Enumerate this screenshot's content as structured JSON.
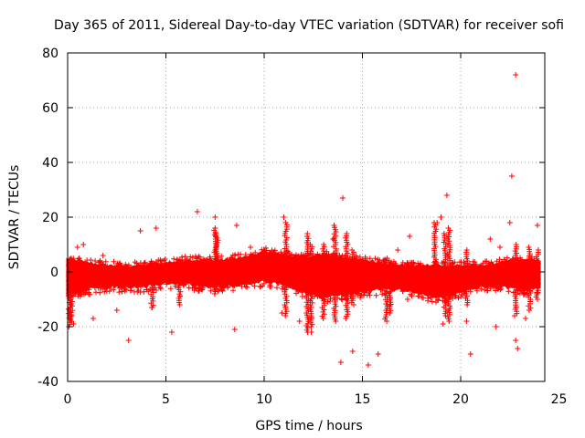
{
  "chart_data": {
    "type": "scatter",
    "title": "Day 365 of 2011, Sidereal Day-to-day VTEC variation (SDTVAR) for receiver sofi",
    "xlabel": "GPS time / hours",
    "ylabel": "SDTVAR / TECUs",
    "xlim": [
      0,
      24
    ],
    "ylim": [
      -40,
      80
    ],
    "xticks": [
      0,
      5,
      10,
      15,
      20,
      25
    ],
    "yticks": [
      -40,
      -20,
      0,
      20,
      40,
      60,
      80
    ],
    "grid": true,
    "marker": "+",
    "color": "#ff0000",
    "series": [
      {
        "name": "SDTVAR",
        "description": "Dense band of points roughly between -8 and +6 TECU across 0-24 h, with spikes",
        "band_envelope": {
          "x": [
            0,
            1,
            2,
            3,
            4,
            5,
            6,
            7,
            8,
            9,
            10,
            11,
            12,
            13,
            14,
            15,
            16,
            17,
            18,
            19,
            20,
            21,
            22,
            23,
            24
          ],
          "lower": [
            -8,
            -6,
            -5,
            -5,
            -5,
            -4,
            -4,
            -5,
            -5,
            -4,
            -3,
            -4,
            -7,
            -9,
            -8,
            -7,
            -6,
            -6,
            -8,
            -9,
            -7,
            -5,
            -5,
            -6,
            -6
          ],
          "upper": [
            4,
            3,
            2,
            2,
            2,
            3,
            4,
            4,
            4,
            5,
            7,
            6,
            5,
            6,
            5,
            4,
            3,
            2,
            2,
            2,
            2,
            2,
            3,
            4,
            4
          ]
        },
        "outliers": [
          {
            "x": 22.8,
            "y": 72
          },
          {
            "x": 22.6,
            "y": 35
          },
          {
            "x": 14.0,
            "y": 27
          },
          {
            "x": 19.3,
            "y": 28
          },
          {
            "x": 6.6,
            "y": 22
          },
          {
            "x": 7.5,
            "y": 20
          },
          {
            "x": 11.0,
            "y": 20
          },
          {
            "x": 8.6,
            "y": 17
          },
          {
            "x": 4.5,
            "y": 16
          },
          {
            "x": 3.7,
            "y": 15
          },
          {
            "x": 18.8,
            "y": 18
          },
          {
            "x": 19.0,
            "y": 20
          },
          {
            "x": 22.5,
            "y": 18
          },
          {
            "x": 23.9,
            "y": 17
          },
          {
            "x": 21.5,
            "y": 12
          },
          {
            "x": 22.0,
            "y": 9
          },
          {
            "x": 3.1,
            "y": -25
          },
          {
            "x": 5.3,
            "y": -22
          },
          {
            "x": 8.5,
            "y": -21
          },
          {
            "x": 13.9,
            "y": -33
          },
          {
            "x": 14.5,
            "y": -29
          },
          {
            "x": 15.3,
            "y": -34
          },
          {
            "x": 15.8,
            "y": -30
          },
          {
            "x": 20.5,
            "y": -30
          },
          {
            "x": 22.9,
            "y": -28
          },
          {
            "x": 22.8,
            "y": -25
          },
          {
            "x": 23.3,
            "y": -17
          },
          {
            "x": 20.3,
            "y": -18
          },
          {
            "x": 19.1,
            "y": -19
          },
          {
            "x": 11.8,
            "y": -18
          },
          {
            "x": 10.9,
            "y": -15
          },
          {
            "x": 1.3,
            "y": -17
          },
          {
            "x": 2.5,
            "y": -14
          },
          {
            "x": 4.3,
            "y": -13
          },
          {
            "x": 16.4,
            "y": -12
          },
          {
            "x": 17.3,
            "y": -10
          },
          {
            "x": 0.3,
            "y": -19
          },
          {
            "x": 0.2,
            "y": -16
          },
          {
            "x": 0.1,
            "y": -14
          },
          {
            "x": 21.8,
            "y": -20
          },
          {
            "x": 12.4,
            "y": -22
          },
          {
            "x": 0.5,
            "y": 9
          },
          {
            "x": 0.8,
            "y": 10
          },
          {
            "x": 1.8,
            "y": 6
          },
          {
            "x": 9.3,
            "y": 9
          },
          {
            "x": 12.2,
            "y": 14
          },
          {
            "x": 13.5,
            "y": 12
          },
          {
            "x": 17.4,
            "y": 13
          },
          {
            "x": 16.8,
            "y": 8
          }
        ],
        "spikes": [
          {
            "x": 0.1,
            "min": -20,
            "max": 4
          },
          {
            "x": 0.2,
            "min": -18,
            "max": 5
          },
          {
            "x": 4.3,
            "min": -13,
            "max": 2
          },
          {
            "x": 5.7,
            "min": -12,
            "max": 3
          },
          {
            "x": 7.5,
            "min": -8,
            "max": 16
          },
          {
            "x": 7.6,
            "min": -7,
            "max": 14
          },
          {
            "x": 11.1,
            "min": -16,
            "max": 18
          },
          {
            "x": 12.2,
            "min": -22,
            "max": 13
          },
          {
            "x": 12.4,
            "min": -20,
            "max": 10
          },
          {
            "x": 13.0,
            "min": -17,
            "max": 10
          },
          {
            "x": 13.6,
            "min": -18,
            "max": 17
          },
          {
            "x": 14.2,
            "min": -17,
            "max": 14
          },
          {
            "x": 14.5,
            "min": -12,
            "max": 8
          },
          {
            "x": 16.2,
            "min": -18,
            "max": 5
          },
          {
            "x": 16.4,
            "min": -15,
            "max": 4
          },
          {
            "x": 18.7,
            "min": -8,
            "max": 18
          },
          {
            "x": 19.2,
            "min": -16,
            "max": 14
          },
          {
            "x": 19.4,
            "min": -18,
            "max": 16
          },
          {
            "x": 20.3,
            "min": -12,
            "max": 8
          },
          {
            "x": 22.8,
            "min": -16,
            "max": 10
          },
          {
            "x": 23.5,
            "min": -14,
            "max": 9
          },
          {
            "x": 23.9,
            "min": -10,
            "max": 8
          }
        ]
      }
    ]
  }
}
